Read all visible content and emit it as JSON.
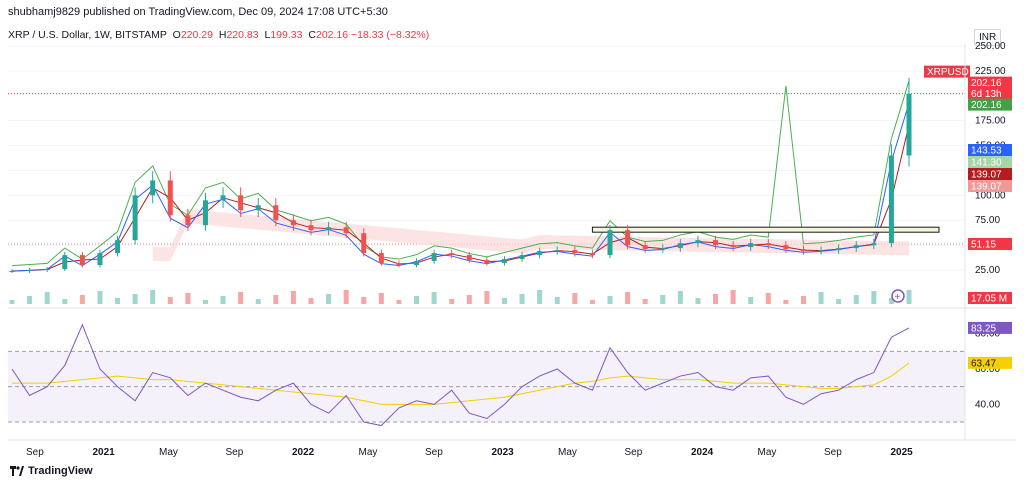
{
  "header": {
    "text": "shubhamj9829 published on TradingView.com, Dec 09, 2024 17:08 UTC+5:30"
  },
  "legend": {
    "symbol": "XRP / U.S. Dollar, 1W, BITSTAMP",
    "open_label": "O",
    "open": "220.29",
    "high_label": "H",
    "high": "220.83",
    "low_label": "L",
    "low": "199.33",
    "close_label": "C",
    "close": "202.16",
    "change": "−18.33 (−8.32%)"
  },
  "currency": "INR",
  "footer": {
    "brand": "TradingView"
  },
  "colors": {
    "up": "#26a69a",
    "down": "#ef5350",
    "rsi": "#7e57c2",
    "rsi_ma": "#f5d000",
    "ichi_span": "#4caf50",
    "base_line": "#b71c1c",
    "conv_line": "#2962ff",
    "cloud_red": "#fbd8d8",
    "cloud_green": "#d7efd7"
  },
  "chart_data": {
    "type": "line",
    "title": "XRP / U.S. Dollar, 1W, BITSTAMP",
    "price_axis": {
      "ticks": [
        "250.00",
        "225.00",
        "175.00",
        "150.00",
        "125.00",
        "100.00",
        "75.00",
        "50.00",
        "25.00"
      ],
      "labels": [
        {
          "text": "XRPUSD",
          "color": "#f23645"
        },
        {
          "text": "202.16",
          "color": "#f23645"
        },
        {
          "text": "6d 13h",
          "color": "#f23645"
        },
        {
          "text": "202.16",
          "color": "#43a047"
        },
        {
          "text": "143.53",
          "color": "#2962ff"
        },
        {
          "text": "141.30",
          "color": "#a5d6a7"
        },
        {
          "text": "139.07",
          "color": "#b71c1c"
        },
        {
          "text": "139.07",
          "color": "#ef9a9a"
        },
        {
          "text": "51.15",
          "color": "#f23645"
        },
        {
          "text": "17.05 M",
          "color": "#f23645"
        }
      ]
    },
    "rsi_axis": {
      "ticks": [
        "80.00",
        "60.00",
        "40.00"
      ],
      "labels": [
        {
          "text": "83.25",
          "color": "#7e57c2"
        },
        {
          "text": "63.47",
          "color": "#f5d000"
        }
      ]
    },
    "x_ticks": [
      "Sep",
      "2021",
      "May",
      "Sep",
      "2022",
      "May",
      "Sep",
      "2023",
      "May",
      "Sep",
      "2024",
      "May",
      "Sep",
      "2025"
    ],
    "series": [
      {
        "x": [
          "2020-09",
          "2020-10",
          "2020-11",
          "2020-12",
          "2021-01",
          "2021-02",
          "2021-03",
          "2021-04",
          "2021-05",
          "2021-06",
          "2021-07",
          "2021-08",
          "2021-09",
          "2021-10",
          "2021-11",
          "2021-12",
          "2022-01",
          "2022-02",
          "2022-03",
          "2022-04",
          "2022-05",
          "2022-06",
          "2022-07",
          "2022-08",
          "2022-09",
          "2022-10",
          "2022-11",
          "2022-12",
          "2023-01",
          "2023-02",
          "2023-03",
          "2023-04",
          "2023-05",
          "2023-06",
          "2023-07",
          "2023-08",
          "2023-09",
          "2023-10",
          "2023-11",
          "2023-12",
          "2024-01",
          "2024-02",
          "2024-03",
          "2024-04",
          "2024-05",
          "2024-06",
          "2024-07",
          "2024-08",
          "2024-09",
          "2024-10",
          "2024-11",
          "2024-12"
        ],
        "values": [
          24,
          25,
          26,
          40,
          30,
          42,
          55,
          100,
          115,
          80,
          70,
          95,
          100,
          85,
          90,
          75,
          70,
          65,
          68,
          62,
          42,
          32,
          30,
          34,
          42,
          40,
          35,
          32,
          36,
          40,
          44,
          45,
          42,
          40,
          65,
          50,
          46,
          47,
          52,
          55,
          50,
          48,
          52,
          50,
          46,
          44,
          45,
          47,
          50,
          52,
          140,
          202
        ]
      }
    ],
    "rsi": {
      "values": [
        60,
        45,
        50,
        62,
        85,
        60,
        50,
        42,
        58,
        55,
        45,
        52,
        48,
        44,
        42,
        48,
        52,
        40,
        35,
        45,
        30,
        28,
        38,
        42,
        40,
        48,
        35,
        32,
        40,
        50,
        56,
        60,
        52,
        48,
        72,
        58,
        48,
        52,
        56,
        58,
        50,
        48,
        55,
        56,
        44,
        40,
        46,
        48,
        54,
        58,
        78,
        83.25
      ],
      "ma_values": [
        52,
        52,
        52,
        53,
        54,
        55,
        56,
        55,
        54,
        54,
        53,
        52,
        51,
        50,
        49,
        48,
        47,
        46,
        45,
        44,
        42,
        40,
        40,
        40,
        40,
        41,
        42,
        43,
        44,
        46,
        48,
        50,
        52,
        53,
        55,
        56,
        55,
        54,
        54,
        54,
        53,
        52,
        52,
        52,
        51,
        50,
        49,
        49,
        50,
        51,
        56,
        63.47
      ]
    }
  }
}
